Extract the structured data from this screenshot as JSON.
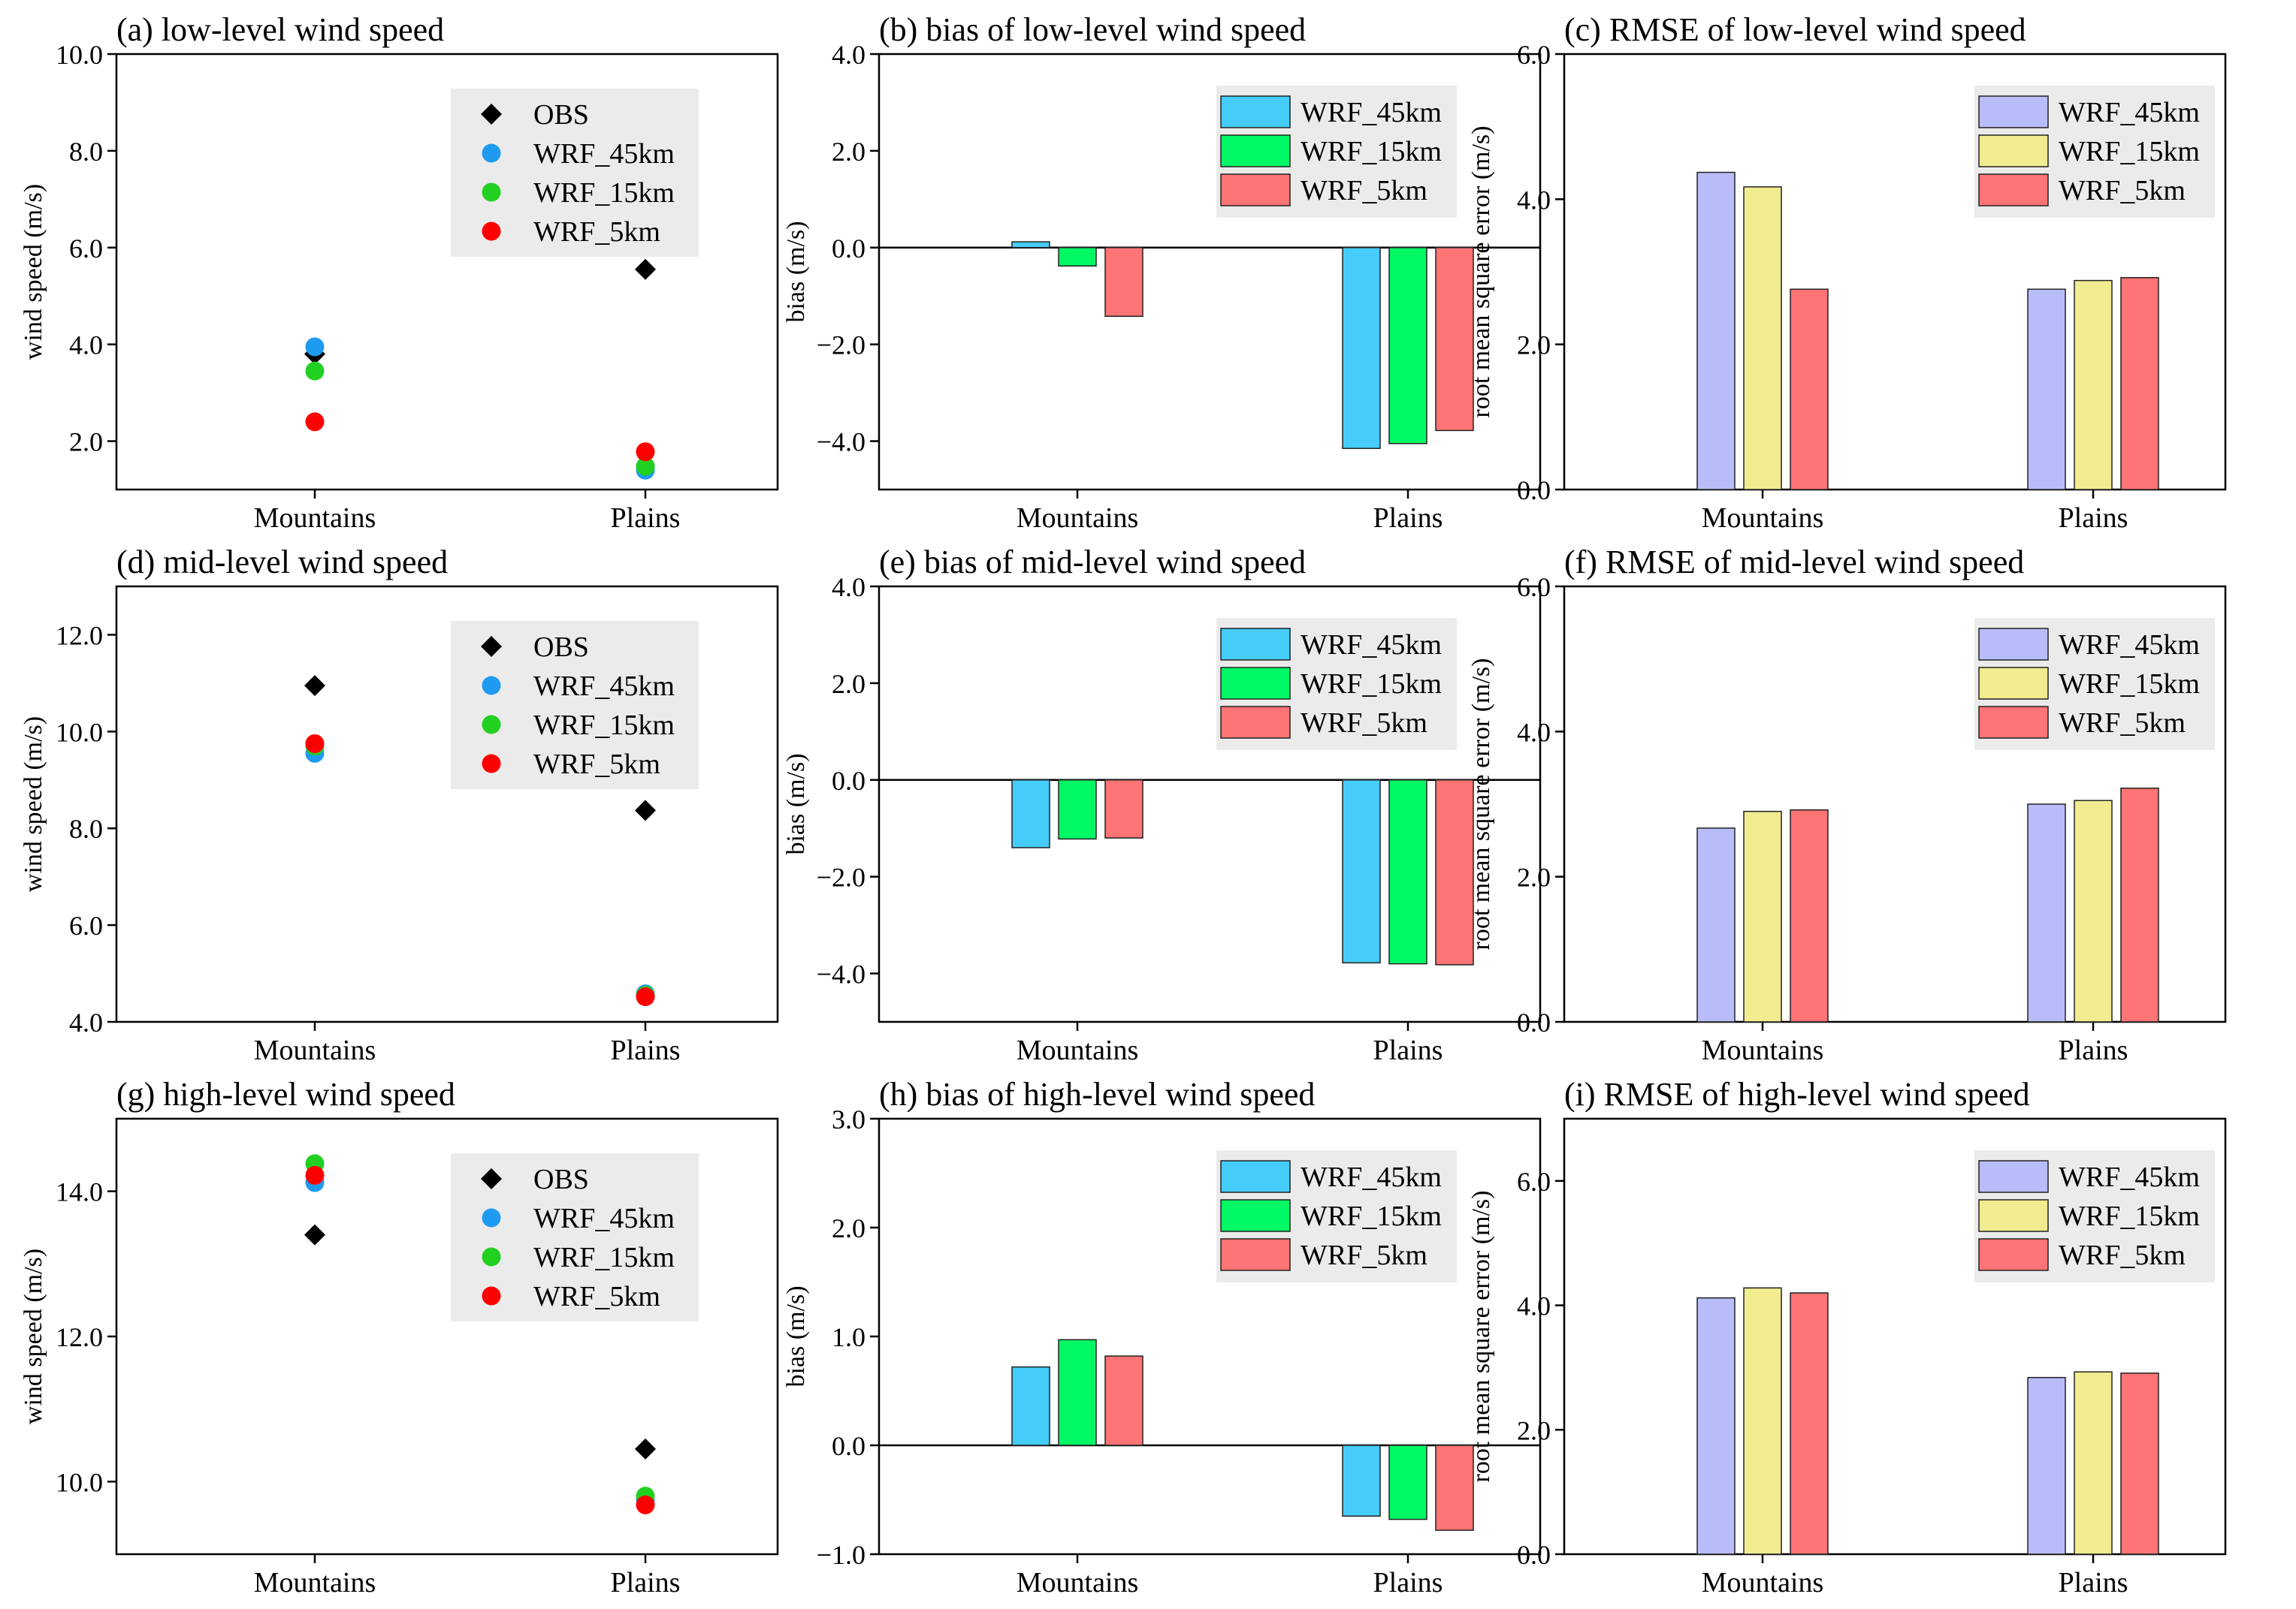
{
  "chart_data": [
    {
      "id": "a",
      "type": "scatter",
      "title": "(a) low-level wind speed",
      "ylabel": "wind speed (m/s)",
      "categories": [
        "Mountains",
        "Plains"
      ],
      "ylim": [
        1.0,
        10.0
      ],
      "yticks": [
        2.0,
        4.0,
        6.0,
        8.0,
        10.0
      ],
      "yticklabels": [
        "2.0",
        "4.0",
        "6.0",
        "8.0",
        "10.0"
      ],
      "series": [
        {
          "name": "OBS",
          "marker": "diamond",
          "color": "#000000",
          "values": [
            3.8,
            5.55
          ]
        },
        {
          "name": "WRF_45km",
          "marker": "circle",
          "color": "#1e9bf0",
          "values": [
            3.95,
            1.4
          ]
        },
        {
          "name": "WRF_15km",
          "marker": "circle",
          "color": "#22d022",
          "values": [
            3.45,
            1.48
          ]
        },
        {
          "name": "WRF_5km",
          "marker": "circle",
          "color": "#ff0000",
          "values": [
            2.4,
            1.78
          ]
        }
      ]
    },
    {
      "id": "b",
      "type": "bar",
      "title": "(b) bias of low-level wind speed",
      "ylabel": "bias (m/s)",
      "categories": [
        "Mountains",
        "Plains"
      ],
      "ylim": [
        -5.0,
        4.0
      ],
      "yticks": [
        -4.0,
        -2.0,
        0.0,
        2.0,
        4.0
      ],
      "yticklabels": [
        "−4.0",
        "−2.0",
        "0.0",
        "2.0",
        "4.0"
      ],
      "series": [
        {
          "name": "WRF_45km",
          "color": "#45ccf8",
          "values": [
            0.12,
            -4.15
          ]
        },
        {
          "name": "WRF_15km",
          "color": "#00f865",
          "values": [
            -0.38,
            -4.05
          ]
        },
        {
          "name": "WRF_5km",
          "color": "#ff7474",
          "values": [
            -1.42,
            -3.78
          ]
        }
      ]
    },
    {
      "id": "c",
      "type": "bar",
      "title": "(c) RMSE of low-level wind speed",
      "ylabel": "root mean square error (m/s)",
      "categories": [
        "Mountains",
        "Plains"
      ],
      "ylim": [
        0.0,
        6.0
      ],
      "yticks": [
        0.0,
        2.0,
        4.0,
        6.0
      ],
      "yticklabels": [
        "0.0",
        "2.0",
        "4.0",
        "6.0"
      ],
      "series": [
        {
          "name": "WRF_45km",
          "color": "#b8bdfa",
          "values": [
            4.37,
            2.76
          ]
        },
        {
          "name": "WRF_15km",
          "color": "#f2ec90",
          "values": [
            4.17,
            2.88
          ]
        },
        {
          "name": "WRF_5km",
          "color": "#ff7474",
          "values": [
            2.76,
            2.92
          ]
        }
      ]
    },
    {
      "id": "d",
      "type": "scatter",
      "title": "(d) mid-level wind speed",
      "ylabel": "wind speed (m/s)",
      "categories": [
        "Mountains",
        "Plains"
      ],
      "ylim": [
        4.0,
        13.0
      ],
      "yticks": [
        4.0,
        6.0,
        8.0,
        10.0,
        12.0
      ],
      "yticklabels": [
        "4.0",
        "6.0",
        "8.0",
        "10.0",
        "12.0"
      ],
      "series": [
        {
          "name": "OBS",
          "marker": "diamond",
          "color": "#000000",
          "values": [
            10.95,
            8.37
          ]
        },
        {
          "name": "WRF_45km",
          "marker": "circle",
          "color": "#1e9bf0",
          "values": [
            9.55,
            4.58
          ]
        },
        {
          "name": "WRF_15km",
          "marker": "circle",
          "color": "#22d022",
          "values": [
            9.7,
            4.55
          ]
        },
        {
          "name": "WRF_5km",
          "marker": "circle",
          "color": "#ff0000",
          "values": [
            9.75,
            4.52
          ]
        }
      ]
    },
    {
      "id": "e",
      "type": "bar",
      "title": "(e) bias of mid-level wind speed",
      "ylabel": "bias (m/s)",
      "categories": [
        "Mountains",
        "Plains"
      ],
      "ylim": [
        -5.0,
        4.0
      ],
      "yticks": [
        -4.0,
        -2.0,
        0.0,
        2.0,
        4.0
      ],
      "yticklabels": [
        "−4.0",
        "−2.0",
        "0.0",
        "2.0",
        "4.0"
      ],
      "series": [
        {
          "name": "WRF_45km",
          "color": "#45ccf8",
          "values": [
            -1.4,
            -3.78
          ]
        },
        {
          "name": "WRF_15km",
          "color": "#00f865",
          "values": [
            -1.22,
            -3.8
          ]
        },
        {
          "name": "WRF_5km",
          "color": "#ff7474",
          "values": [
            -1.2,
            -3.82
          ]
        }
      ]
    },
    {
      "id": "f",
      "type": "bar",
      "title": "(f) RMSE of mid-level wind speed",
      "ylabel": "root mean square error (m/s)",
      "categories": [
        "Mountains",
        "Plains"
      ],
      "ylim": [
        0.0,
        6.0
      ],
      "yticks": [
        0.0,
        2.0,
        4.0,
        6.0
      ],
      "yticklabels": [
        "0.0",
        "2.0",
        "4.0",
        "6.0"
      ],
      "series": [
        {
          "name": "WRF_45km",
          "color": "#b8bdfa",
          "values": [
            2.67,
            3.0
          ]
        },
        {
          "name": "WRF_15km",
          "color": "#f2ec90",
          "values": [
            2.9,
            3.05
          ]
        },
        {
          "name": "WRF_5km",
          "color": "#ff7474",
          "values": [
            2.92,
            3.22
          ]
        }
      ]
    },
    {
      "id": "g",
      "type": "scatter",
      "title": "(g) high-level wind speed",
      "ylabel": "wind speed (m/s)",
      "categories": [
        "Mountains",
        "Plains"
      ],
      "ylim": [
        9.0,
        15.0
      ],
      "yticks": [
        10.0,
        12.0,
        14.0
      ],
      "yticklabels": [
        "10.0",
        "12.0",
        "14.0"
      ],
      "series": [
        {
          "name": "OBS",
          "marker": "diamond",
          "color": "#000000",
          "values": [
            13.4,
            10.45
          ]
        },
        {
          "name": "WRF_45km",
          "marker": "circle",
          "color": "#1e9bf0",
          "values": [
            14.12,
            9.75
          ]
        },
        {
          "name": "WRF_15km",
          "marker": "circle",
          "color": "#22d022",
          "values": [
            14.38,
            9.8
          ]
        },
        {
          "name": "WRF_5km",
          "marker": "circle",
          "color": "#ff0000",
          "values": [
            14.22,
            9.68
          ]
        }
      ]
    },
    {
      "id": "h",
      "type": "bar",
      "title": "(h) bias of high-level wind speed",
      "ylabel": "bias (m/s)",
      "categories": [
        "Mountains",
        "Plains"
      ],
      "ylim": [
        -1.0,
        3.0
      ],
      "yticks": [
        -1.0,
        0.0,
        1.0,
        2.0,
        3.0
      ],
      "yticklabels": [
        "−1.0",
        "0.0",
        "1.0",
        "2.0",
        "3.0"
      ],
      "series": [
        {
          "name": "WRF_45km",
          "color": "#45ccf8",
          "values": [
            0.72,
            -0.65
          ]
        },
        {
          "name": "WRF_15km",
          "color": "#00f865",
          "values": [
            0.97,
            -0.68
          ]
        },
        {
          "name": "WRF_5km",
          "color": "#ff7474",
          "values": [
            0.82,
            -0.78
          ]
        }
      ]
    },
    {
      "id": "i",
      "type": "bar",
      "title": "(i) RMSE of high-level wind speed",
      "ylabel": "root mean square error (m/s)",
      "categories": [
        "Mountains",
        "Plains"
      ],
      "ylim": [
        0.0,
        7.0
      ],
      "yticks": [
        0.0,
        2.0,
        4.0,
        6.0
      ],
      "yticklabels": [
        "0.0",
        "2.0",
        "4.0",
        "6.0"
      ],
      "series": [
        {
          "name": "WRF_45km",
          "color": "#b8bdfa",
          "values": [
            4.12,
            2.84
          ]
        },
        {
          "name": "WRF_15km",
          "color": "#f2ec90",
          "values": [
            4.28,
            2.93
          ]
        },
        {
          "name": "WRF_5km",
          "color": "#ff7474",
          "values": [
            4.2,
            2.91
          ]
        }
      ]
    }
  ]
}
